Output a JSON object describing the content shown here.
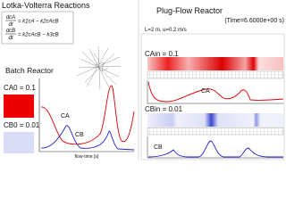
{
  "left_panel": {
    "title": "Lotka-Volterra Reactions",
    "equations": [
      {
        "numerator": "dcA",
        "denominator": "dt",
        "rhs": "= k1cA − k2cAcB"
      },
      {
        "numerator": "dcB",
        "denominator": "dt",
        "rhs": "= k2cAcB − k3cB"
      }
    ],
    "batch_title": "Batch Reactor",
    "ca0": "CA0 = 0.1",
    "cb0": "CB0 = 0.01",
    "curve_a": "CA",
    "curve_b": "CB",
    "x_label": "flow-time [s]"
  },
  "right_panel": {
    "title": "Plug-Flow Reactor",
    "time": "(Time=6.6000e+00 s)",
    "params": "L=2 m, u=0.2 m/s",
    "ca_in": "CAin = 0.1",
    "cb_in": "CBin = 0.01",
    "curve_a": "CA",
    "curve_b": "CB"
  }
}
